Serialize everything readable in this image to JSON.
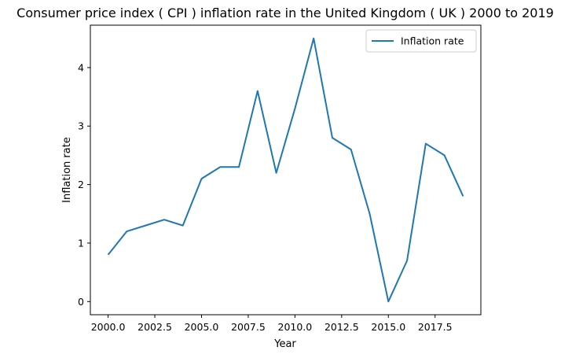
{
  "chart_data": {
    "type": "line",
    "title": "Consumer price index ( CPI ) inflation rate in the United Kingdom ( UK ) 2000 to 2019",
    "xlabel": "Year",
    "ylabel": "Inflation rate",
    "x": [
      2000,
      2001,
      2002,
      2003,
      2004,
      2005,
      2006,
      2007,
      2008,
      2009,
      2010,
      2011,
      2012,
      2013,
      2014,
      2015,
      2016,
      2017,
      2018,
      2019
    ],
    "series": [
      {
        "name": "Inflation rate",
        "color": "#1f77b4",
        "values": [
          0.8,
          1.2,
          1.3,
          1.4,
          1.3,
          2.1,
          2.3,
          2.3,
          3.6,
          2.2,
          3.3,
          4.5,
          2.8,
          2.6,
          1.5,
          0.0,
          0.7,
          2.7,
          2.5,
          1.8
        ]
      }
    ],
    "xlim": [
      1999.05,
      2019.95
    ],
    "ylim": [
      -0.225,
      4.725
    ],
    "xticks": [
      2000.0,
      2002.5,
      2005.0,
      2007.5,
      2010.0,
      2012.5,
      2015.0,
      2017.5
    ],
    "xtick_labels": [
      "2000.0",
      "2002.5",
      "2005.0",
      "2007.5",
      "2010.0",
      "2012.5",
      "2015.0",
      "2017.5"
    ],
    "yticks": [
      0,
      1,
      2,
      3,
      4
    ],
    "ytick_labels": [
      "0",
      "1",
      "2",
      "3",
      "4"
    ],
    "grid": false,
    "legend_position": "top-right"
  }
}
